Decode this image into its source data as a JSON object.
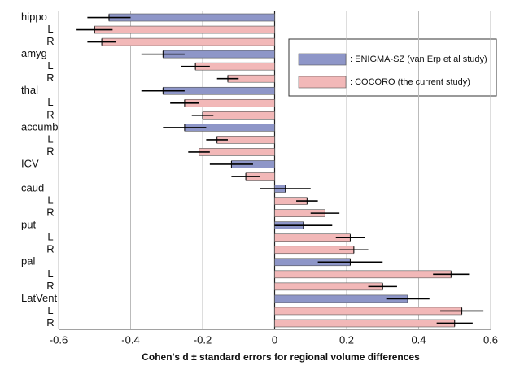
{
  "chart_data": {
    "type": "bar",
    "orientation": "horizontal",
    "xlabel": "Cohen's d ± standard errors for regional volume differences",
    "categories": [
      "hippo",
      "L",
      "R",
      "amyg",
      "L",
      "R",
      "thal",
      "L",
      "R",
      "accumb",
      "L",
      "R",
      "ICV",
      null,
      "caud",
      "L",
      "R",
      "put",
      "L",
      "R",
      "pal",
      "L",
      "R",
      "LatVent",
      "L",
      "R"
    ],
    "series": [
      {
        "name": ": ENIGMA-SZ (van Erp et al study)",
        "color": "#8e96c8",
        "values": [
          -0.46,
          null,
          null,
          -0.31,
          null,
          null,
          -0.31,
          null,
          null,
          -0.25,
          null,
          null,
          -0.12,
          null,
          0.03,
          null,
          null,
          0.08,
          null,
          null,
          0.21,
          null,
          null,
          0.37,
          null,
          null
        ],
        "errors": [
          0.06,
          null,
          null,
          0.06,
          null,
          null,
          0.06,
          null,
          null,
          0.06,
          null,
          null,
          0.06,
          null,
          0.07,
          null,
          null,
          0.08,
          null,
          null,
          0.09,
          null,
          null,
          0.06,
          null,
          null
        ]
      },
      {
        "name": ": COCORO (the current study)",
        "color": "#f2b8b8",
        "values": [
          null,
          -0.5,
          -0.48,
          null,
          -0.22,
          -0.13,
          null,
          -0.25,
          -0.2,
          null,
          -0.16,
          -0.21,
          null,
          -0.08,
          null,
          0.09,
          0.14,
          null,
          0.21,
          0.22,
          null,
          0.49,
          0.3,
          null,
          0.52,
          0.5
        ],
        "errors": [
          null,
          0.05,
          0.04,
          null,
          0.04,
          0.03,
          null,
          0.04,
          0.03,
          null,
          0.03,
          0.03,
          null,
          0.04,
          null,
          0.03,
          0.04,
          null,
          0.04,
          0.04,
          null,
          0.05,
          0.04,
          null,
          0.06,
          0.05
        ]
      }
    ],
    "xlim": [
      -0.6,
      0.6
    ],
    "xticks": [
      -0.6,
      -0.4,
      -0.2,
      0,
      0.2,
      0.4,
      0.6
    ],
    "grid": true
  }
}
